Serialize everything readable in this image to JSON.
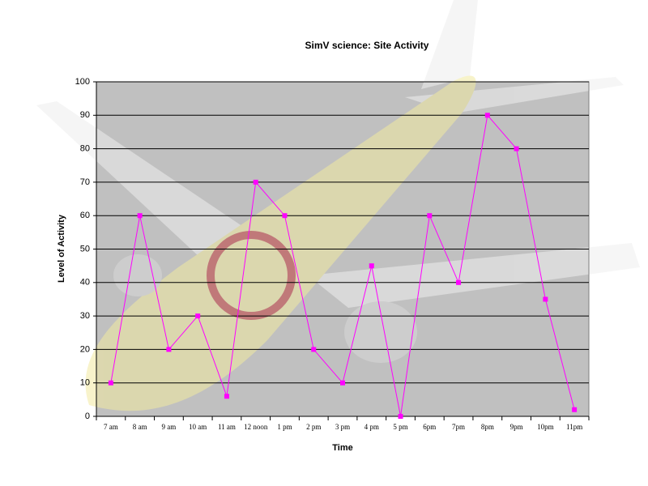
{
  "chart_data": {
    "type": "line",
    "title": "SimV science: Site Activity",
    "x_label": "Time",
    "y_label": "Level of Activity",
    "categories": [
      "7 am",
      "8 am",
      "9 am",
      "10 am",
      "11 am",
      "12 noon",
      "1 pm",
      "2 pm",
      "3 pm",
      "4 pm",
      "5 pm",
      "6pm",
      "7pm",
      "8pm",
      "9pm",
      "10pm",
      "11pm"
    ],
    "values": [
      10,
      60,
      20,
      30,
      6,
      70,
      60,
      20,
      10,
      45,
      0,
      60,
      40,
      90,
      80,
      35,
      2
    ],
    "color": "#ff00ff",
    "ylim": [
      0,
      100
    ],
    "yticks": [
      0,
      10,
      20,
      30,
      40,
      50,
      60,
      70,
      80,
      90,
      100
    ],
    "grid": true
  }
}
